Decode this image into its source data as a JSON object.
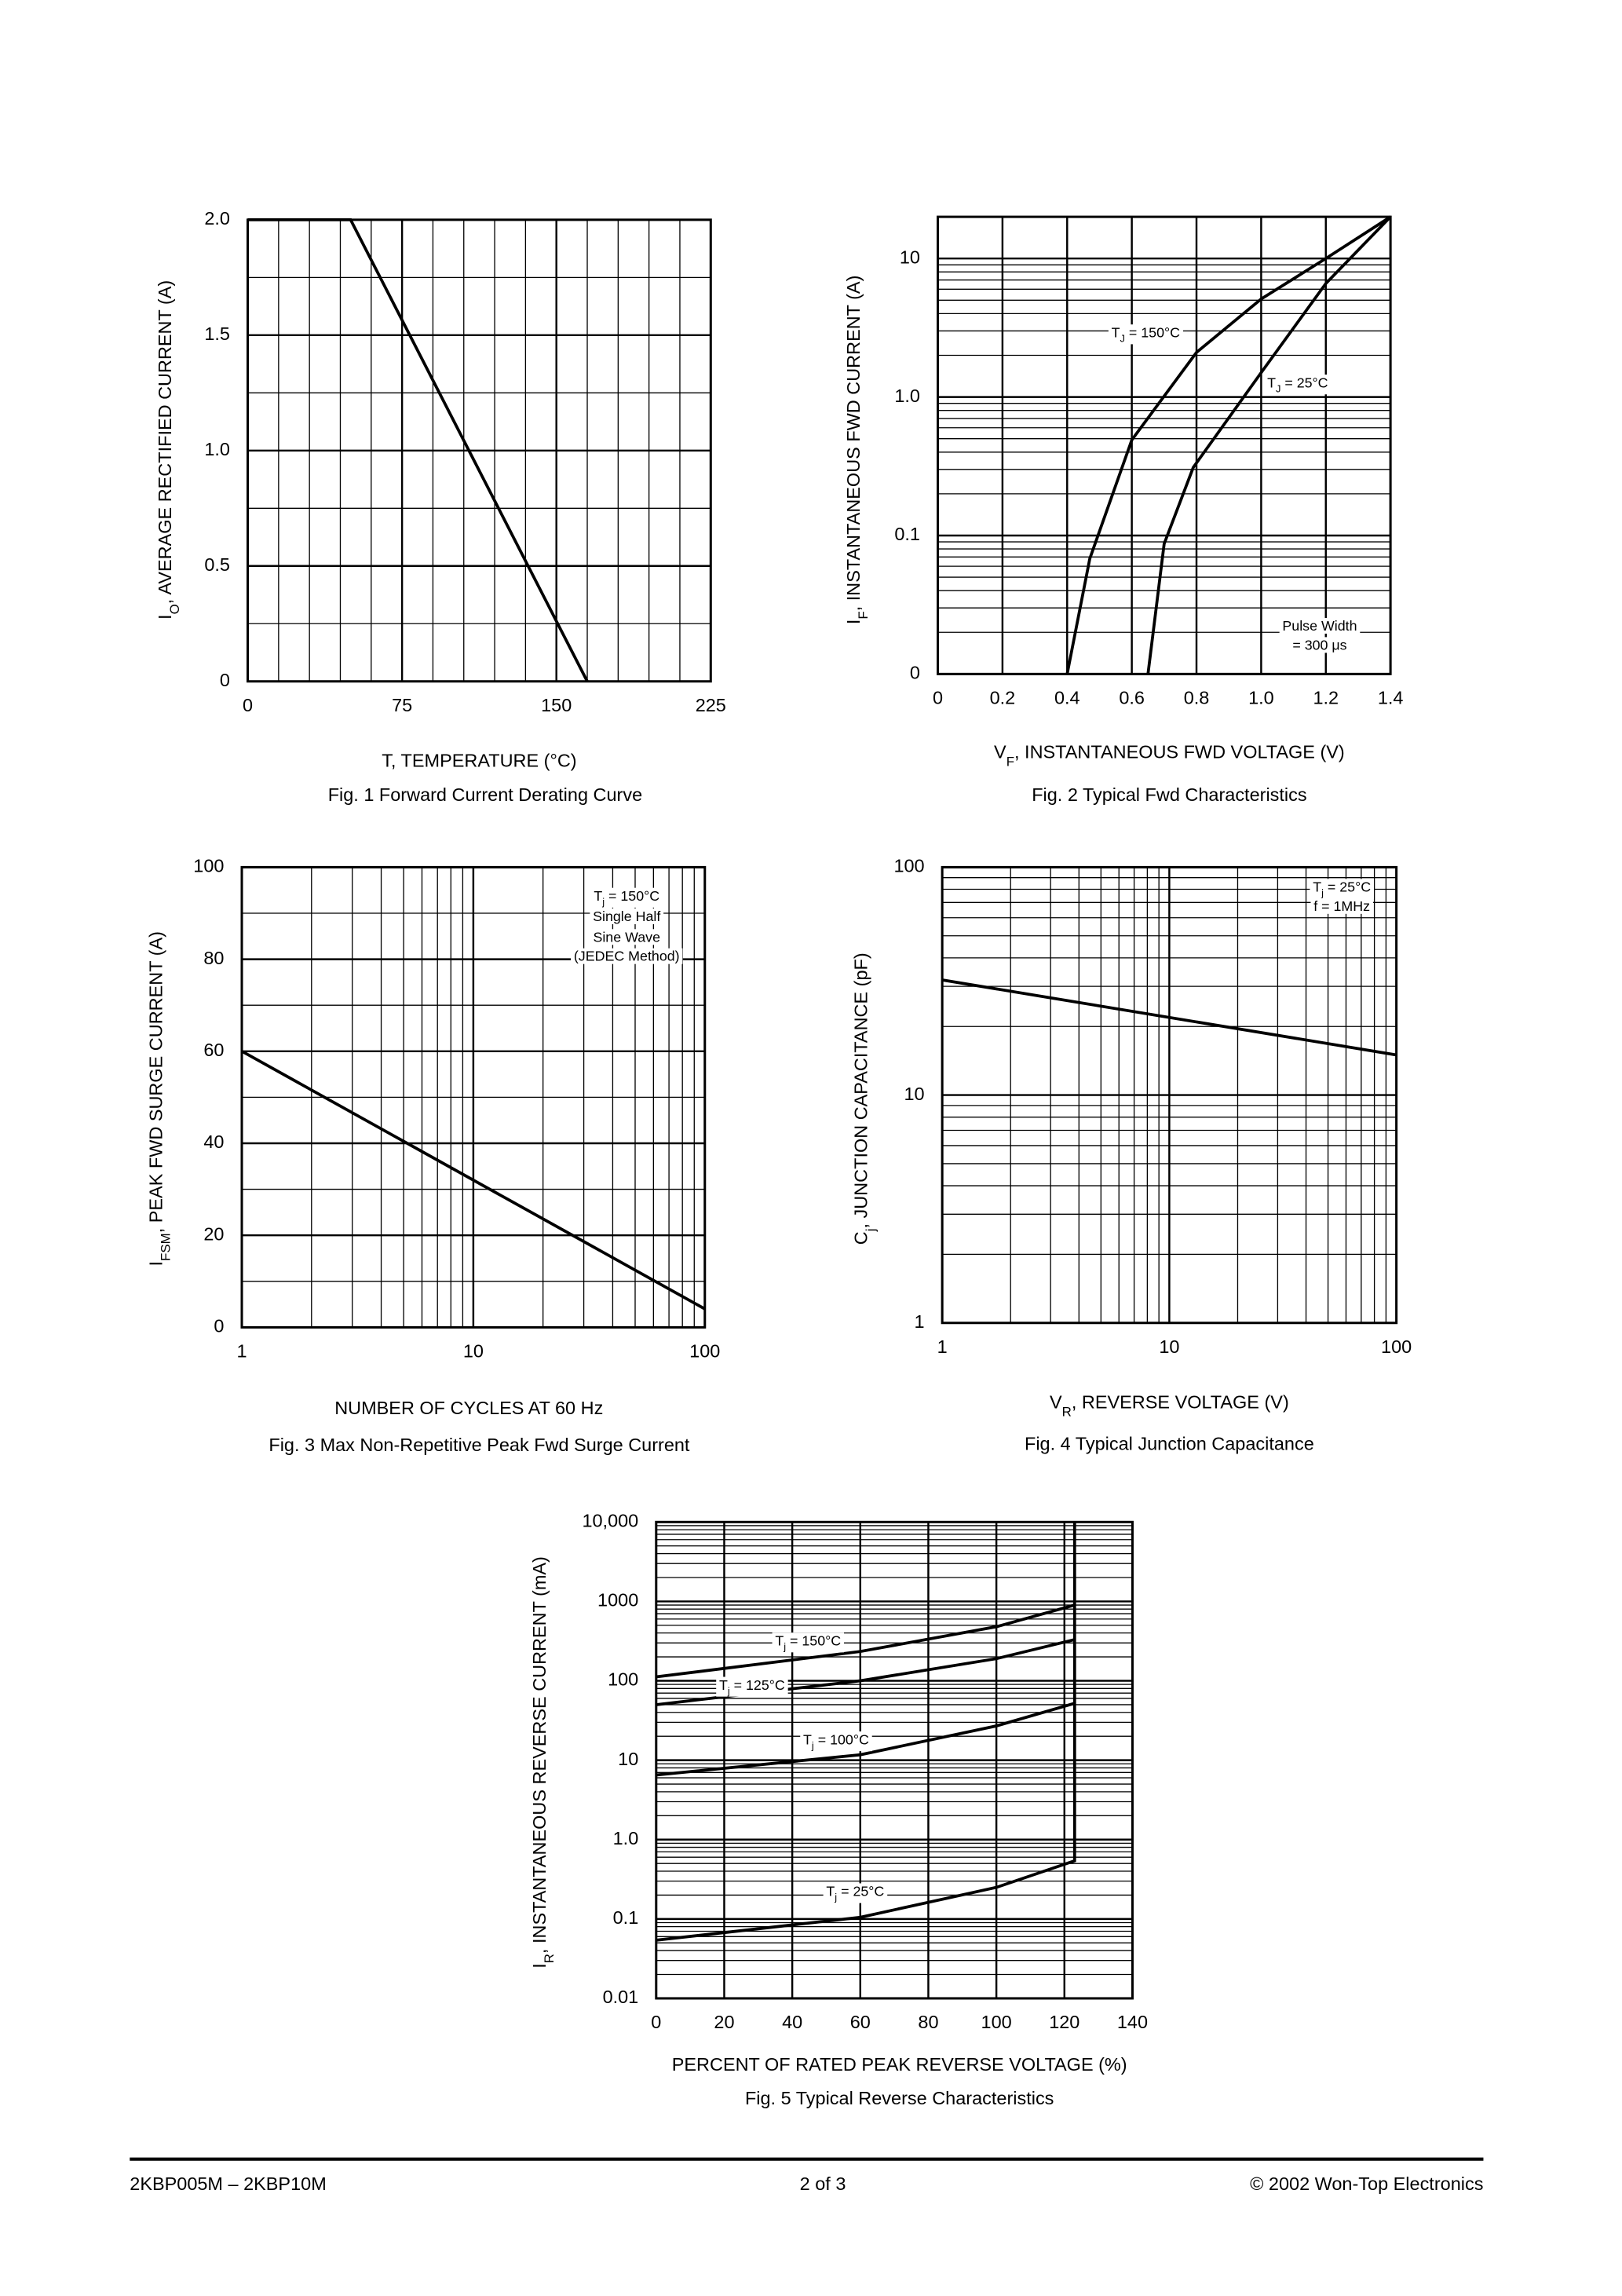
{
  "chart_data": [
    {
      "type": "line",
      "title": "Fig. 1  Forward Current Derating Curve",
      "xlabel": "T, TEMPERATURE (°C)",
      "ylabel": {
        "main": "I",
        "sub": "O",
        "rest": ", AVERAGE RECTIFIED CURRENT (A)"
      },
      "xlim": [
        0,
        225
      ],
      "xticks": [
        0,
        75,
        150,
        225
      ],
      "ylim": [
        0,
        2
      ],
      "yticks": [
        0,
        0.5,
        {
          "value": 1,
          "label": "1.0"
        },
        1.5,
        {
          "value": 2,
          "label": "2.0"
        }
      ],
      "grid": true,
      "series": [
        {
          "color": "#000000",
          "x": [
            0,
            50,
            165
          ],
          "values": [
            2,
            2,
            0
          ]
        }
      ]
    },
    {
      "type": "line",
      "title": "Fig. 2  Typical Fwd Characteristics",
      "xlabel": {
        "main": "V",
        "sub": "F",
        "rest": ", INSTANTANEOUS FWD VOLTAGE (V)"
      },
      "ylabel": {
        "main": "I",
        "sub": "F",
        "rest": ", INSTANTANEOUS FWD CURRENT (A)"
      },
      "xlim": [
        0,
        1.4
      ],
      "xticks": [
        0,
        0.2,
        0.4,
        0.6,
        0.8,
        {
          "value": 1,
          "label": "1.0"
        },
        1.2,
        1.4
      ],
      "ylim": [
        0.01,
        20
      ],
      "ylog": true,
      "yticks": [
        {
          "value": 0.01,
          "label": "0"
        },
        0.1,
        {
          "value": 1,
          "label": "1.0"
        },
        10
      ],
      "grid": true,
      "series": [
        {
          "label": {
            "main": "T",
            "sub": "J",
            "rest": " =  150°C"
          },
          "color": "#000000",
          "x": [
            0.4,
            0.47,
            0.6,
            0.8,
            1.0,
            1.2,
            1.4
          ],
          "values": [
            0.01,
            0.068,
            0.49,
            2.1,
            5.1,
            10,
            20
          ]
        },
        {
          "label": {
            "main": "T",
            "sub": "J",
            "rest": " =  25°C"
          },
          "color": "#000000",
          "x": [
            0.65,
            0.7,
            0.79,
            1.0,
            1.2,
            1.4
          ],
          "values": [
            0.01,
            0.087,
            0.31,
            1.5,
            6.6,
            20
          ]
        }
      ],
      "annotations": [
        "Pulse Width",
        "=  300 μs"
      ]
    },
    {
      "type": "line",
      "title": "Fig. 3  Max Non-Repetitive Peak Fwd Surge Current",
      "xlabel": "NUMBER OF CYCLES AT 60 Hz",
      "ylabel": {
        "main": "I",
        "sub": "FSM",
        "rest": ",  PEAK FWD SURGE CURRENT (A)"
      },
      "xlim": [
        1,
        100
      ],
      "xlog": true,
      "xticks": [
        1,
        10,
        100
      ],
      "ylim": [
        0,
        100
      ],
      "yticks": [
        0,
        20,
        40,
        60,
        80,
        100
      ],
      "grid": true,
      "series": [
        {
          "color": "#000000",
          "x": [
            1,
            100
          ],
          "values": [
            60,
            4
          ]
        }
      ],
      "annotations": [
        {
          "main": "T",
          "sub": "j",
          "rest": " =  150°C"
        },
        "Single Half",
        "Sine Wave",
        "(JEDEC Method)"
      ]
    },
    {
      "type": "line",
      "title": "Fig. 4  Typical Junction Capacitance",
      "xlabel": {
        "main": "V",
        "sub": "R",
        "rest": ", REVERSE VOLTAGE (V)"
      },
      "ylabel": {
        "main": "C",
        "sub": "j",
        "rest": ", JUNCTION CAPACITANCE (pF)"
      },
      "xlim": [
        1,
        100
      ],
      "xlog": true,
      "xticks": [
        1,
        10,
        100
      ],
      "ylim": [
        1,
        100
      ],
      "ylog": true,
      "yticks": [
        1,
        10,
        100
      ],
      "grid": true,
      "series": [
        {
          "color": "#000000",
          "x": [
            1,
            100
          ],
          "values": [
            32,
            15
          ]
        }
      ],
      "annotations": [
        {
          "main": "T",
          "sub": "j",
          "rest": " = 25°C"
        },
        "f = 1MHz"
      ]
    },
    {
      "type": "line",
      "title": "Fig. 5  Typical Reverse Characteristics",
      "xlabel": "PERCENT OF RATED PEAK REVERSE VOLTAGE (%)",
      "ylabel": {
        "main": "I",
        "sub": "R",
        "rest": ", INSTANTANEOUS REVERSE CURRENT (mA)"
      },
      "xlim": [
        0,
        140
      ],
      "xticks": [
        0,
        20,
        40,
        60,
        80,
        100,
        120,
        140
      ],
      "ylim": [
        0.01,
        10000
      ],
      "ylog": true,
      "yticks": [
        0.01,
        0.1,
        {
          "value": 1,
          "label": "1.0"
        },
        10,
        100,
        1000,
        {
          "value": 10000,
          "label": "10,000"
        }
      ],
      "grid": true,
      "series": [
        {
          "label": {
            "main": "T",
            "sub": "j",
            "rest": " = 150°C"
          },
          "color": "#000000",
          "x": [
            0,
            60,
            100,
            123
          ],
          "values": [
            112,
            234,
            480,
            900
          ]
        },
        {
          "label": {
            "main": "T",
            "sub": "j",
            "rest": " = 125°C"
          },
          "color": "#000000",
          "x": [
            0,
            60,
            100,
            123
          ],
          "values": [
            50,
            100,
            190,
            330
          ]
        },
        {
          "label": {
            "main": "T",
            "sub": "j",
            "rest": " = 100°C"
          },
          "color": "#000000",
          "x": [
            0,
            60,
            100,
            123
          ],
          "values": [
            6.5,
            11.7,
            27,
            52
          ]
        },
        {
          "label": {
            "main": "T",
            "sub": "j",
            "rest": " = 25°C"
          },
          "color": "#000000",
          "x": [
            0,
            60,
            100,
            123,
            123
          ],
          "values": [
            0.054,
            0.105,
            0.25,
            0.54,
            10000
          ]
        }
      ]
    }
  ],
  "footer": {
    "left": "2KBP005M – 2KBP10M",
    "center": "2 of 3",
    "right": "© 2002 Won-Top Electronics"
  }
}
